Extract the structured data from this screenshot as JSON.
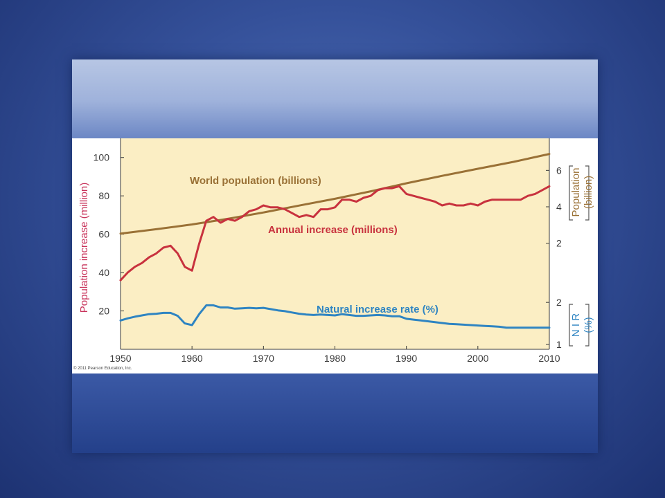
{
  "colors": {
    "plot_background": "#fbeec4",
    "world_population": "#9a7136",
    "annual_increase": "#c8323e",
    "natural_increase_rate": "#2e84c2",
    "left_axis_title": "#c8325a",
    "population_axis_title": "#9a7136",
    "nir_axis_title": "#2e84c2"
  },
  "copyright": "© 2011 Pearson Education, Inc.",
  "chart_data": {
    "type": "line",
    "x_ticks": [
      "1950",
      "1960",
      "1970",
      "1980",
      "1990",
      "2000",
      "2010"
    ],
    "xlim": [
      1950,
      2010
    ],
    "left_axis": {
      "label": "Population increase (million)",
      "ticks": [
        "20",
        "40",
        "60",
        "80",
        "100"
      ],
      "ylim": [
        0,
        110
      ]
    },
    "right_axis_population": {
      "label_top": "Population",
      "label_bottom": "(billion)",
      "ticks": [
        "2",
        "4",
        "6"
      ],
      "range": [
        1,
        7
      ]
    },
    "right_axis_nir": {
      "label_top": "N I R",
      "label_bottom": "(%)",
      "ticks": [
        "1",
        "2"
      ],
      "range": [
        1,
        2.2
      ]
    },
    "series": [
      {
        "name": "World population (billions)",
        "key": "world_population",
        "axis": "population",
        "x": [
          1950,
          1955,
          1960,
          1965,
          1970,
          1975,
          1980,
          1985,
          1990,
          1995,
          2000,
          2005,
          2010
        ],
        "values": [
          2.53,
          2.77,
          3.03,
          3.34,
          3.69,
          4.07,
          4.44,
          4.85,
          5.29,
          5.7,
          6.09,
          6.47,
          6.9
        ]
      },
      {
        "name": "Annual increase (millions)",
        "key": "annual_increase",
        "axis": "left",
        "x": [
          1950,
          1951,
          1952,
          1953,
          1954,
          1955,
          1956,
          1957,
          1958,
          1959,
          1960,
          1961,
          1962,
          1963,
          1964,
          1965,
          1966,
          1967,
          1968,
          1969,
          1970,
          1971,
          1972,
          1973,
          1974,
          1975,
          1976,
          1977,
          1978,
          1979,
          1980,
          1981,
          1982,
          1983,
          1984,
          1985,
          1986,
          1987,
          1988,
          1989,
          1990,
          1991,
          1992,
          1993,
          1994,
          1995,
          1996,
          1997,
          1998,
          1999,
          2000,
          2001,
          2002,
          2003,
          2004,
          2005,
          2006,
          2007,
          2008,
          2009,
          2010
        ],
        "values": [
          36,
          40,
          43,
          45,
          48,
          50,
          53,
          54,
          50,
          43,
          41,
          55,
          67,
          69,
          66,
          68,
          67,
          69,
          72,
          73,
          75,
          74,
          74,
          73,
          71,
          69,
          70,
          69,
          73,
          73,
          74,
          78,
          78,
          77,
          79,
          80,
          83,
          84,
          84,
          85,
          81,
          80,
          79,
          78,
          77,
          75,
          76,
          75,
          75,
          76,
          75,
          77,
          78,
          78,
          78,
          78,
          78,
          80,
          81,
          83,
          85
        ]
      },
      {
        "name": "Natural increase rate (%)",
        "key": "natural_increase_rate",
        "axis": "nir",
        "x": [
          1950,
          1951,
          1952,
          1953,
          1954,
          1955,
          1956,
          1957,
          1958,
          1959,
          1960,
          1961,
          1962,
          1963,
          1964,
          1965,
          1966,
          1967,
          1968,
          1969,
          1970,
          1971,
          1972,
          1973,
          1974,
          1975,
          1976,
          1977,
          1978,
          1979,
          1980,
          1981,
          1982,
          1983,
          1984,
          1985,
          1986,
          1987,
          1988,
          1989,
          1990,
          1991,
          1992,
          1993,
          1994,
          1995,
          1996,
          1997,
          1998,
          1999,
          2000,
          2001,
          2002,
          2003,
          2004,
          2005,
          2006,
          2007,
          2008,
          2009,
          2010
        ],
        "values": [
          1.57,
          1.62,
          1.66,
          1.69,
          1.72,
          1.73,
          1.75,
          1.75,
          1.68,
          1.5,
          1.46,
          1.72,
          1.93,
          1.93,
          1.88,
          1.88,
          1.85,
          1.86,
          1.87,
          1.86,
          1.87,
          1.84,
          1.81,
          1.79,
          1.76,
          1.73,
          1.71,
          1.7,
          1.71,
          1.7,
          1.69,
          1.72,
          1.7,
          1.68,
          1.68,
          1.69,
          1.7,
          1.69,
          1.67,
          1.67,
          1.61,
          1.59,
          1.57,
          1.55,
          1.53,
          1.51,
          1.49,
          1.48,
          1.47,
          1.46,
          1.45,
          1.44,
          1.43,
          1.42,
          1.4,
          1.4,
          1.4,
          1.4,
          1.4,
          1.4,
          1.4
        ]
      }
    ],
    "grid": false,
    "legend": "none (series labelled inline)"
  }
}
